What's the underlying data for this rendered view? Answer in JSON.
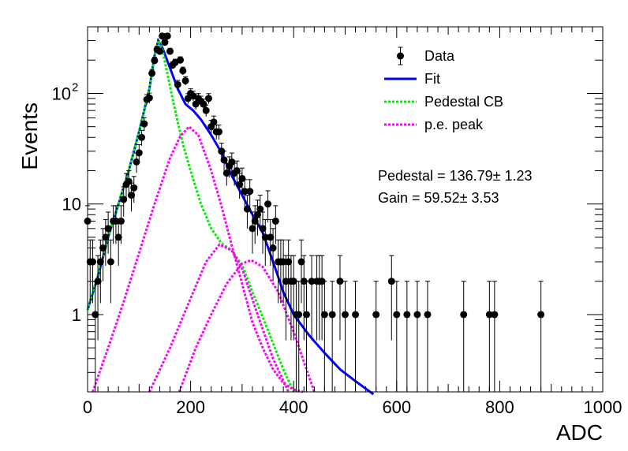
{
  "chart_data": {
    "type": "scatter",
    "title": "",
    "xlabel": "ADC",
    "ylabel": "Events",
    "xlim": [
      0,
      1000
    ],
    "ylim": [
      0.2,
      400
    ],
    "y_scale": "log",
    "x_ticks": [
      "0",
      "200",
      "400",
      "600",
      "800",
      "1000"
    ],
    "y_tick_labels": [
      {
        "value": 1,
        "label": "1"
      },
      {
        "value": 10,
        "label": "10"
      },
      {
        "value": 100,
        "label": "10",
        "exponent": "2"
      }
    ],
    "grid": false,
    "legend": {
      "position": "top-right",
      "entries": [
        {
          "label": "Data",
          "style": "marker-errorbar",
          "color": "#000000"
        },
        {
          "label": "Fit",
          "style": "line",
          "color": "#0000ff"
        },
        {
          "label": "Pedestal CB",
          "style": "dotted",
          "color": "#00ee00"
        },
        {
          "label": "p.e. peak",
          "style": "dotted",
          "color": "#ff00ff"
        }
      ]
    },
    "annotations": [
      {
        "label": "Pedestal",
        "value": "136.79",
        "error": "1.23"
      },
      {
        "label": "Gain",
        "value": "59.52",
        "error": "3.53"
      }
    ],
    "fit_parameters": {
      "pedestal": 136.79,
      "pedestal_error": 1.23,
      "gain": 59.52,
      "gain_error": 3.53
    },
    "series": [
      {
        "name": "Data",
        "x": [
          0,
          5,
          10,
          15,
          20,
          25,
          30,
          35,
          40,
          45,
          50,
          55,
          60,
          65,
          70,
          75,
          80,
          85,
          90,
          95,
          100,
          105,
          110,
          115,
          120,
          125,
          130,
          135,
          140,
          145,
          150,
          155,
          160,
          165,
          170,
          175,
          180,
          185,
          190,
          195,
          200,
          205,
          210,
          215,
          220,
          225,
          230,
          235,
          240,
          245,
          250,
          255,
          260,
          265,
          270,
          275,
          280,
          285,
          290,
          295,
          300,
          305,
          310,
          315,
          320,
          325,
          330,
          335,
          340,
          345,
          350,
          355,
          360,
          365,
          370,
          375,
          380,
          385,
          390,
          395,
          400,
          405,
          410,
          415,
          420,
          425,
          435,
          445,
          450,
          455,
          460,
          475,
          490,
          500,
          520,
          560,
          590,
          600,
          620,
          640,
          660,
          730,
          780,
          790,
          880
        ],
        "y": [
          7,
          3,
          3,
          1,
          2,
          3,
          4,
          5,
          6,
          3,
          7,
          7,
          5,
          7,
          11,
          15,
          16,
          12,
          14,
          24,
          29,
          40,
          53,
          88,
          91,
          152,
          198,
          250,
          240,
          330,
          290,
          330,
          240,
          180,
          190,
          120,
          200,
          160,
          130,
          90,
          100,
          95,
          80,
          90,
          85,
          80,
          70,
          90,
          50,
          55,
          45,
          45,
          30,
          25,
          19,
          22,
          24,
          19,
          20,
          15,
          17,
          13,
          9,
          13,
          6,
          7,
          8,
          9,
          6,
          5,
          10,
          5,
          4,
          7,
          3,
          3,
          3,
          2,
          3,
          2,
          2,
          1,
          1,
          3,
          2,
          1,
          2,
          2,
          2,
          2,
          1,
          1,
          2,
          1,
          1,
          1,
          2,
          1,
          1,
          1,
          1,
          1,
          1,
          1,
          1
        ]
      },
      {
        "name": "Fit",
        "x": [
          0,
          20,
          40,
          60,
          80,
          100,
          120,
          130,
          137,
          145,
          160,
          175,
          190,
          205,
          220,
          240,
          260,
          280,
          300,
          320,
          340,
          360,
          380,
          400,
          430,
          460,
          490,
          520,
          555
        ],
        "y": [
          1.1,
          2.2,
          5,
          10,
          20,
          45,
          110,
          220,
          300,
          260,
          170,
          110,
          80,
          70,
          58,
          42,
          29,
          18,
          12,
          8,
          5.5,
          3,
          1.6,
          1.0,
          0.65,
          0.45,
          0.32,
          0.25,
          0.19
        ]
      },
      {
        "name": "Pedestal CB",
        "x": [
          0,
          20,
          40,
          60,
          80,
          100,
          120,
          130,
          137,
          145,
          155,
          165,
          175,
          185,
          200,
          220,
          240,
          260,
          280,
          300,
          320,
          340,
          360,
          380,
          400
        ],
        "y": [
          1.1,
          2.3,
          5,
          10,
          20,
          45,
          110,
          220,
          300,
          250,
          150,
          90,
          55,
          35,
          20,
          10,
          6,
          4.4,
          3.8,
          2.8,
          1.6,
          0.95,
          0.55,
          0.32,
          0.2
        ]
      },
      {
        "name": "p.e. peak",
        "x": [
          10,
          40,
          70,
          100,
          130,
          160,
          180,
          197,
          215,
          240,
          260,
          280,
          300,
          320,
          340,
          360,
          380,
          400,
          418
        ],
        "y": [
          0.2,
          0.5,
          1.3,
          3.6,
          10,
          26,
          41,
          50,
          42,
          20,
          9.5,
          4.2,
          1.9,
          0.85,
          0.5,
          0.32,
          0.24,
          0.21,
          0.2
        ]
      },
      {
        "name": "p.e. peak",
        "x": [
          120,
          160,
          200,
          230,
          256,
          280,
          300,
          330,
          360,
          390
        ],
        "y": [
          0.2,
          0.5,
          1.4,
          3.0,
          4.3,
          3.8,
          2.6,
          1.0,
          0.4,
          0.2
        ]
      },
      {
        "name": "p.e. peak",
        "x": [
          178,
          210,
          240,
          270,
          300,
          318,
          340,
          370,
          400,
          440
        ],
        "y": [
          0.2,
          0.5,
          1.0,
          1.9,
          2.9,
          3.1,
          2.7,
          1.6,
          0.7,
          0.2
        ]
      }
    ]
  }
}
